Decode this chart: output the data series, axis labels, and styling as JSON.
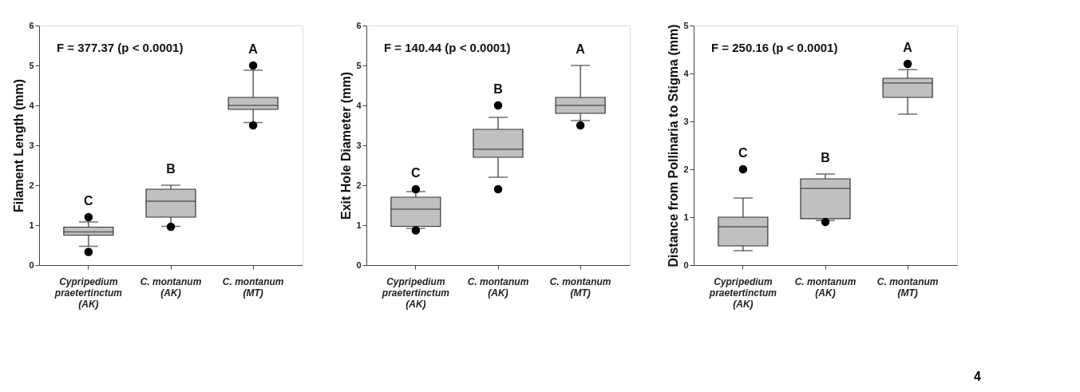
{
  "chart_data": [
    {
      "type": "box",
      "ylabel": "Filament Length (mm)",
      "categories": [
        "Cypripedium praetertinctum (AK)",
        "C. montanum (AK)",
        "C. montanum (MT)"
      ],
      "ylim": [
        0,
        6
      ],
      "yticks": [
        0,
        1,
        2,
        3,
        4,
        5,
        6
      ],
      "grid": false,
      "series": [
        {
          "color": "#c0c0c0",
          "boxes": [
            {
              "low": 0.47,
              "q1": 0.75,
              "median": 0.83,
              "q3": 0.95,
              "high": 1.08,
              "outliers": [
                1.2,
                0.33
              ]
            },
            {
              "low": 0.97,
              "q1": 1.2,
              "median": 1.6,
              "q3": 1.9,
              "high": 2.0,
              "outliers": [
                0.96
              ]
            },
            {
              "low": 3.57,
              "q1": 3.9,
              "median": 4.0,
              "q3": 4.2,
              "high": 4.88,
              "outliers": [
                5.0,
                3.5
              ]
            }
          ]
        }
      ],
      "annotations": [
        "F = 377.37 (p < 0.0001)",
        "C",
        "B",
        "A"
      ]
    },
    {
      "type": "box",
      "ylabel": "Exit Hole Diameter (mm)",
      "categories": [
        "Cypripedium praetertinctum (AK)",
        "C. montanum (AK)",
        "C. montanum (MT)"
      ],
      "ylim": [
        0,
        6
      ],
      "yticks": [
        0,
        1,
        2,
        3,
        4,
        5,
        6
      ],
      "grid": false,
      "series": [
        {
          "color": "#c0c0c0",
          "boxes": [
            {
              "low": 0.92,
              "q1": 0.97,
              "median": 1.4,
              "q3": 1.7,
              "high": 1.84,
              "outliers": [
                1.9,
                0.87
              ]
            },
            {
              "low": 2.2,
              "q1": 2.7,
              "median": 2.9,
              "q3": 3.4,
              "high": 3.7,
              "outliers": [
                4.0,
                1.9
              ]
            },
            {
              "low": 3.62,
              "q1": 3.8,
              "median": 4.0,
              "q3": 4.2,
              "high": 5.0,
              "outliers": [
                3.5
              ]
            }
          ]
        }
      ],
      "annotations": [
        "F = 140.44 (p < 0.0001)",
        "C",
        "B",
        "A"
      ]
    },
    {
      "type": "box",
      "ylabel": "Distance from Pollinaria to Stigma (mm)",
      "categories": [
        "Cypripedium praetertinctum (AK)",
        "C. montanum (AK)",
        "C. montanum (MT)"
      ],
      "ylim": [
        0,
        5
      ],
      "yticks": [
        0,
        1,
        2,
        3,
        4,
        5
      ],
      "grid": false,
      "series": [
        {
          "color": "#c0c0c0",
          "boxes": [
            {
              "low": 0.3,
              "q1": 0.4,
              "median": 0.8,
              "q3": 1.0,
              "high": 1.4,
              "outliers": [
                2.0
              ]
            },
            {
              "low": 0.93,
              "q1": 0.97,
              "median": 1.6,
              "q3": 1.8,
              "high": 1.9,
              "outliers": [
                0.9
              ]
            },
            {
              "low": 3.15,
              "q1": 3.5,
              "median": 3.8,
              "q3": 3.9,
              "high": 4.08,
              "outliers": [
                4.2
              ]
            }
          ]
        }
      ],
      "annotations": [
        "F = 250.16 (p < 0.0001)",
        "C",
        "B",
        "A",
        "4"
      ]
    }
  ]
}
